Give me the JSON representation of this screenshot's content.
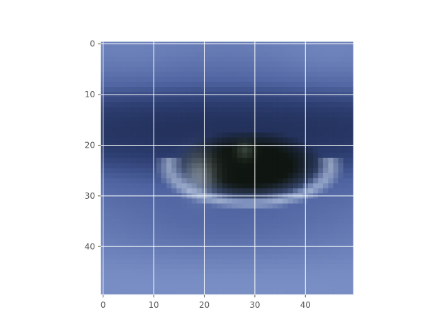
{
  "chart_data": {
    "type": "heatmap",
    "image": {
      "rows": 50,
      "cols": 50,
      "description": "blurred pixelated close-up of an eye in blue tones",
      "palette": {
        "light": "#7e93c8",
        "mid": "#3a4f8f",
        "dark": "#111a33",
        "pupil": "#0f1510",
        "highlight": "#d7e4f0"
      }
    },
    "x_ticks": [
      0,
      10,
      20,
      30,
      40
    ],
    "y_ticks": [
      0,
      10,
      20,
      30,
      40
    ],
    "xlim": [
      -0.5,
      49.5
    ],
    "ylim": [
      49.5,
      -0.5
    ],
    "grid": true,
    "grid_color": "#ffffff",
    "tick_color": "#555555",
    "title": "",
    "xlabel": "",
    "ylabel": ""
  }
}
